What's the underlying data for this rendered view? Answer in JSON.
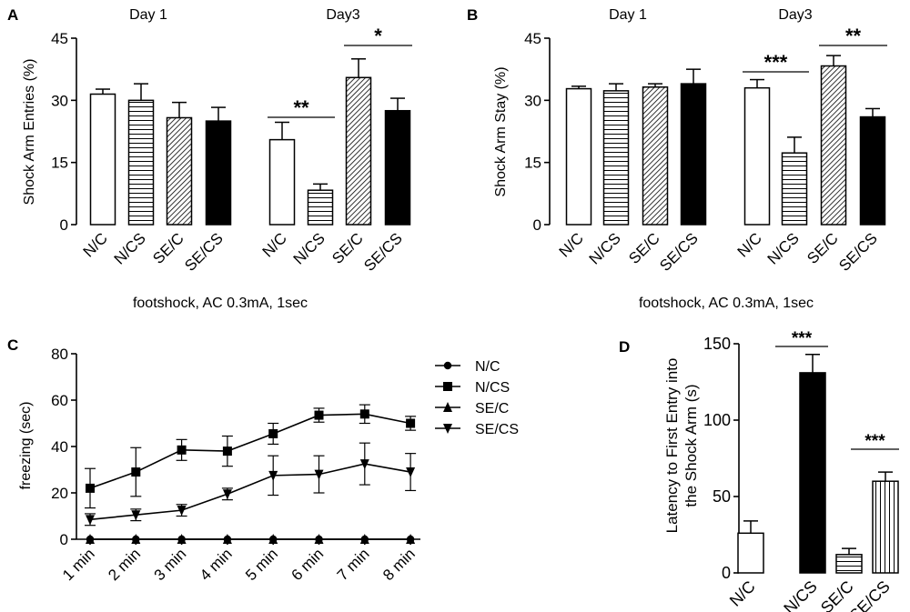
{
  "chart_data": [
    {
      "panel": "A",
      "type": "bar",
      "ylabel": "Shock Arm Entries (%)",
      "ylim": [
        0,
        45
      ],
      "yticks": [
        0,
        15,
        30,
        45
      ],
      "xlabel": "footshock, AC 0.3mA, 1sec",
      "groups": [
        {
          "title": "Day 1",
          "categories": [
            "N/C",
            "N/CS",
            "SE/C",
            "SE/CS"
          ],
          "values": [
            31.5,
            30,
            25.8,
            25
          ],
          "errors": [
            1.2,
            4,
            3.7,
            3.3
          ]
        },
        {
          "title": "Day3",
          "categories": [
            "N/C",
            "N/CS",
            "SE/C",
            "SE/CS"
          ],
          "values": [
            20.5,
            8.3,
            35.5,
            27.5
          ],
          "errors": [
            4.2,
            1.5,
            4.5,
            3
          ]
        }
      ],
      "significance": [
        {
          "group": 1,
          "from": 0,
          "to": 1,
          "label": "**"
        },
        {
          "group": 1,
          "from": 2,
          "to": 3,
          "label": "*"
        }
      ]
    },
    {
      "panel": "B",
      "type": "bar",
      "ylabel": "Shock Arm Stay (%)",
      "ylim": [
        0,
        45
      ],
      "yticks": [
        0,
        15,
        30,
        45
      ],
      "xlabel": "footshock, AC 0.3mA, 1sec",
      "groups": [
        {
          "title": "Day 1",
          "categories": [
            "N/C",
            "N/CS",
            "SE/C",
            "SE/CS"
          ],
          "values": [
            32.8,
            32.3,
            33.2,
            34
          ],
          "errors": [
            0.6,
            1.7,
            0.8,
            3.5
          ]
        },
        {
          "title": "Day3",
          "categories": [
            "N/C",
            "N/CS",
            "SE/C",
            "SE/CS"
          ],
          "values": [
            33,
            17.3,
            38.3,
            26
          ],
          "errors": [
            2,
            3.8,
            2.5,
            2
          ]
        }
      ],
      "significance": [
        {
          "group": 1,
          "from": 0,
          "to": 1,
          "label": "***"
        },
        {
          "group": 1,
          "from": 2,
          "to": 3,
          "label": "**"
        }
      ]
    },
    {
      "panel": "C",
      "type": "line",
      "ylabel": "freezing (sec)",
      "ylim": [
        0,
        80
      ],
      "yticks": [
        0,
        20,
        40,
        60,
        80
      ],
      "x": [
        "1 min",
        "2 min",
        "3 min",
        "4 min",
        "5 min",
        "6 min",
        "7 min",
        "8 min"
      ],
      "series": [
        {
          "name": "N/C",
          "marker": "circle",
          "values": [
            0,
            0,
            0,
            0,
            0,
            0,
            0,
            0
          ],
          "errors": [
            0,
            0,
            0,
            0,
            0,
            0,
            0,
            0
          ]
        },
        {
          "name": "N/CS",
          "marker": "square",
          "values": [
            22,
            29,
            38.5,
            38,
            45.5,
            53.5,
            54,
            50
          ],
          "errors": [
            8.5,
            10.5,
            4.5,
            6.5,
            4.5,
            3,
            4,
            3
          ]
        },
        {
          "name": "SE/C",
          "marker": "triangle-up",
          "values": [
            0,
            0,
            0,
            0,
            0,
            0,
            0,
            0
          ],
          "errors": [
            0,
            0,
            0,
            0,
            0,
            0,
            0,
            0
          ]
        },
        {
          "name": "SE/CS",
          "marker": "triangle-down",
          "values": [
            8.5,
            10.5,
            12.5,
            19.5,
            27.5,
            28,
            32.5,
            29
          ],
          "errors": [
            2.5,
            2.5,
            2.5,
            2.5,
            8.5,
            8,
            9,
            8
          ]
        }
      ]
    },
    {
      "panel": "D",
      "type": "bar",
      "ylabel": "Latency to First Entry into the Shock Arm (s)",
      "ylabel_lines": [
        "Latency to First Entry into",
        "the Shock Arm (s)"
      ],
      "ylim": [
        0,
        150
      ],
      "yticks": [
        0,
        50,
        100,
        150
      ],
      "categories": [
        "N/C",
        "N/CS",
        "SE/C",
        "SE/CS"
      ],
      "values": [
        26,
        131,
        12,
        60
      ],
      "errors": [
        8,
        12,
        4,
        6
      ],
      "significance": [
        {
          "from": 0,
          "to": 1,
          "label": "***"
        },
        {
          "from": 2,
          "to": 3,
          "label": "***"
        }
      ]
    }
  ]
}
